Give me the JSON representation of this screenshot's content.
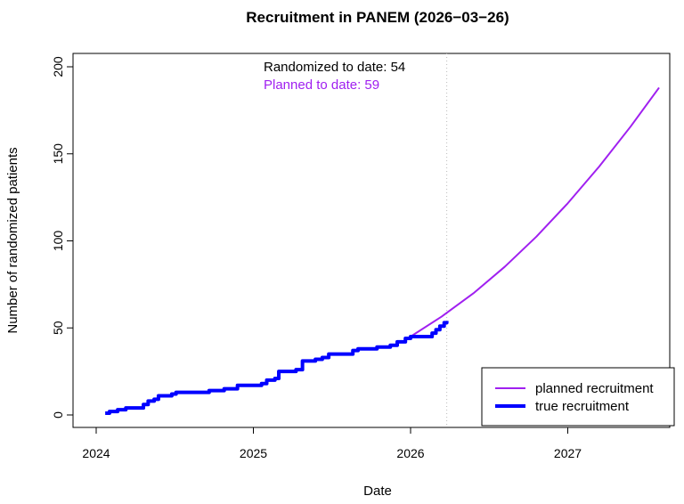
{
  "chart_data": {
    "type": "line",
    "title": "Recruitment in PANEM (2026−03−26)",
    "xlabel": "Date",
    "ylabel": "Number of randomized patients",
    "xlim": [
      "2023-11-15",
      "2027-09-20"
    ],
    "ylim": [
      -8,
      206
    ],
    "x_ticks": [
      "2024",
      "2025",
      "2026",
      "2027"
    ],
    "y_ticks": [
      0,
      50,
      100,
      150,
      200
    ],
    "grid": false,
    "legend_position": "bottom-right",
    "current_date": "2026-03-26",
    "annotations": {
      "randomized": "Randomized to date: 54",
      "planned": "Planned to date: 59"
    },
    "series": [
      {
        "name": "planned recruitment",
        "color": "#a020f0",
        "style": "line",
        "points": [
          [
            "2026-01-01",
            45
          ],
          [
            "2026-03-14",
            56.5
          ],
          [
            "2026-05-27",
            69.9
          ],
          [
            "2026-08-08",
            85.2
          ],
          [
            "2026-10-20",
            102.4
          ],
          [
            "2027-01-01",
            121.6
          ],
          [
            "2027-03-15",
            142.7
          ],
          [
            "2027-05-27",
            165.7
          ],
          [
            "2027-08-01",
            188
          ]
        ]
      },
      {
        "name": "true recruitment",
        "color": "#0000ff",
        "style": "step",
        "points": [
          [
            "2024-01-22",
            1
          ],
          [
            "2024-02-01",
            2
          ],
          [
            "2024-02-20",
            3
          ],
          [
            "2024-03-10",
            4
          ],
          [
            "2024-04-20",
            6
          ],
          [
            "2024-05-01",
            8
          ],
          [
            "2024-05-15",
            9
          ],
          [
            "2024-05-25",
            11
          ],
          [
            "2024-06-25",
            12
          ],
          [
            "2024-07-05",
            13
          ],
          [
            "2024-09-20",
            14
          ],
          [
            "2024-10-25",
            15
          ],
          [
            "2024-11-25",
            17
          ],
          [
            "2025-01-20",
            18
          ],
          [
            "2025-02-01",
            20
          ],
          [
            "2025-02-20",
            21
          ],
          [
            "2025-03-01",
            25
          ],
          [
            "2025-04-10",
            26
          ],
          [
            "2025-04-25",
            31
          ],
          [
            "2025-05-25",
            32
          ],
          [
            "2025-06-10",
            33
          ],
          [
            "2025-06-25",
            35
          ],
          [
            "2025-08-20",
            37
          ],
          [
            "2025-09-01",
            38
          ],
          [
            "2025-10-15",
            39
          ],
          [
            "2025-11-15",
            40
          ],
          [
            "2025-12-01",
            42
          ],
          [
            "2025-12-20",
            44
          ],
          [
            "2026-01-01",
            45
          ],
          [
            "2026-02-20",
            47
          ],
          [
            "2026-03-01",
            49
          ],
          [
            "2026-03-10",
            51
          ],
          [
            "2026-03-20",
            53
          ],
          [
            "2026-03-26",
            54
          ]
        ]
      }
    ]
  }
}
